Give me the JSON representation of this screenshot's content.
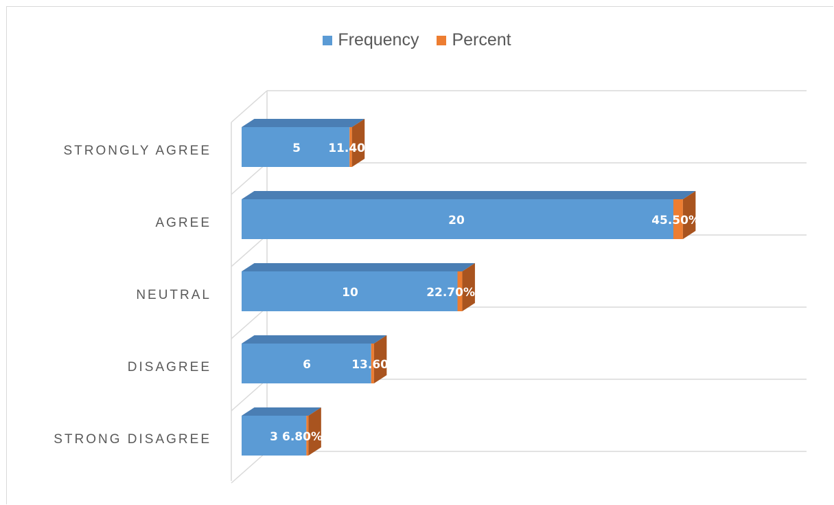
{
  "chart_data": {
    "type": "bar",
    "orientation": "horizontal",
    "style": "3d-stacked",
    "categories": [
      "STRONGLY AGREE",
      "AGREE",
      "NEUTRAL",
      "DISAGREE",
      "STRONG DISAGREE"
    ],
    "series": [
      {
        "name": "Frequency",
        "values": [
          5,
          20,
          10,
          6,
          3
        ],
        "labels": [
          "5",
          "20",
          "10",
          "6",
          "3"
        ]
      },
      {
        "name": "Percent",
        "values": [
          11.4,
          45.5,
          22.7,
          13.6,
          6.8
        ],
        "labels": [
          "11.40",
          "45.50%",
          "22.70%",
          "13.60",
          "6.80%"
        ]
      }
    ],
    "title": "",
    "xlabel": "",
    "ylabel": "",
    "legend_position": "top",
    "grid": true
  },
  "colors": {
    "frequency": "#5b9bd5",
    "frequency_top": "#4a7eb4",
    "percent": "#ed7d31",
    "percent_side": "#a9541f",
    "gridline": "#d9d9d9",
    "text": "#595959"
  },
  "legend": {
    "items": [
      {
        "name": "Frequency",
        "icon": "square-swatch"
      },
      {
        "name": "Percent",
        "icon": "square-swatch"
      }
    ]
  }
}
